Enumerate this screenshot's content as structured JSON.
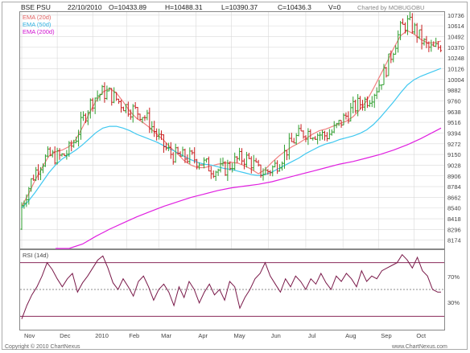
{
  "header": {
    "symbol": "BSE PSU",
    "date": "22/10/2010",
    "open": "O=10433.89",
    "high": "H=10488.31",
    "low": "L=10390.37",
    "close": "C=10436.3",
    "volume": "V=0",
    "credit": "Charted by MOBUGOBU"
  },
  "footer": {
    "copyright": "Copyright © 2010 ChartNexus",
    "brand": "www.ChartNexus.com"
  },
  "colors": {
    "bg": "#ffffff",
    "grid": "#d9d9d9",
    "frame": "#888888",
    "up": "#2e9e2e",
    "down": "#c81e1e",
    "ema20": "#f08080",
    "ema50": "#40c8f0",
    "ema200": "#e020e0",
    "rsi": "#7a1a4a",
    "rsiBand": "#8a2a5a"
  },
  "chart_data": [
    {
      "type": "line",
      "subtype": "ohlc-bars",
      "title": "BSE PSU",
      "x_ticks": [
        "Nov",
        "Dec",
        "2010",
        "Feb",
        "Mar",
        "Apr",
        "May",
        "Jun",
        "Jul",
        "Aug",
        "Sep",
        "Oct"
      ],
      "y_ticks": [
        8174,
        8296,
        8418,
        8540,
        8662,
        8784,
        8906,
        9028,
        9150,
        9272,
        9394,
        9516,
        9638,
        9760,
        9882,
        10004,
        10126,
        10248,
        10370,
        10492,
        10614,
        10736
      ],
      "ylim": [
        8080,
        10780
      ],
      "grid": true,
      "legend": "top-left",
      "series": [
        {
          "name": "EMA (20d)",
          "role": "ema20",
          "x": [
            0,
            4,
            8,
            12,
            16,
            20,
            24,
            28,
            32,
            36,
            40,
            44,
            48,
            52,
            56,
            60,
            64,
            68,
            72,
            76,
            80,
            84,
            88,
            92,
            96,
            100,
            104,
            108,
            112,
            116,
            120,
            124,
            128,
            132,
            136,
            140,
            144,
            148,
            152,
            156,
            160,
            164,
            168,
            172,
            176,
            180,
            184,
            188,
            192,
            196,
            200,
            204,
            208,
            212,
            216,
            220,
            224,
            228,
            232,
            236,
            240,
            244,
            248
          ],
          "values": [
            8560,
            8700,
            8860,
            9000,
            9130,
            9180,
            9200,
            9240,
            9320,
            9460,
            9620,
            9760,
            9860,
            9900,
            9850,
            9750,
            9640,
            9560,
            9510,
            9450,
            9380,
            9310,
            9230,
            9160,
            9080,
            9030,
            9000,
            9000,
            9020,
            9040,
            9050,
            9060,
            9050,
            9020,
            8980,
            8930,
            8980,
            9060,
            9130,
            9190,
            9240,
            9280,
            9330,
            9380,
            9420,
            9440,
            9470,
            9500,
            9530,
            9580,
            9660,
            9760,
            9900,
            10050,
            10200,
            10360,
            10500,
            10560,
            10520,
            10460,
            10420,
            10420,
            10440
          ]
        },
        {
          "name": "EMA (50d)",
          "role": "ema50",
          "x": [
            0,
            4,
            8,
            12,
            16,
            20,
            24,
            28,
            32,
            36,
            40,
            44,
            48,
            52,
            56,
            60,
            64,
            68,
            72,
            76,
            80,
            84,
            88,
            92,
            96,
            100,
            104,
            108,
            112,
            116,
            120,
            124,
            128,
            132,
            136,
            140,
            144,
            148,
            152,
            156,
            160,
            164,
            168,
            172,
            176,
            180,
            184,
            188,
            192,
            196,
            200,
            204,
            208,
            212,
            216,
            220,
            224,
            228,
            232,
            236,
            240,
            244,
            248
          ],
          "values": [
            8540,
            8620,
            8720,
            8830,
            8940,
            9030,
            9100,
            9150,
            9200,
            9260,
            9330,
            9400,
            9450,
            9470,
            9470,
            9450,
            9420,
            9380,
            9350,
            9320,
            9290,
            9250,
            9210,
            9170,
            9130,
            9090,
            9060,
            9040,
            9030,
            9010,
            8990,
            8980,
            8960,
            8940,
            8920,
            8910,
            8920,
            8950,
            8990,
            9030,
            9070,
            9110,
            9160,
            9200,
            9240,
            9270,
            9290,
            9320,
            9340,
            9360,
            9390,
            9430,
            9490,
            9570,
            9660,
            9750,
            9850,
            9940,
            10000,
            10040,
            10070,
            10100,
            10130
          ]
        },
        {
          "name": "EMA (200d)",
          "role": "ema200",
          "x": [
            20,
            28,
            36,
            44,
            52,
            60,
            68,
            76,
            84,
            92,
            100,
            108,
            116,
            124,
            132,
            140,
            148,
            156,
            164,
            172,
            180,
            188,
            196,
            204,
            212,
            220,
            228,
            236,
            244,
            248
          ],
          "values": [
            7980,
            8050,
            8130,
            8220,
            8300,
            8370,
            8440,
            8500,
            8560,
            8610,
            8660,
            8700,
            8740,
            8770,
            8790,
            8810,
            8840,
            8880,
            8920,
            8960,
            9000,
            9040,
            9070,
            9110,
            9150,
            9200,
            9260,
            9330,
            9410,
            9450
          ]
        }
      ]
    },
    {
      "type": "line",
      "title": "RSI (14d)",
      "y_ticks": [
        "70%",
        "30%"
      ],
      "ylim": [
        20,
        80
      ],
      "bands": [
        70,
        50,
        30
      ],
      "series": [
        {
          "name": "RSI (14d)",
          "x": [
            0,
            3,
            6,
            9,
            12,
            15,
            18,
            21,
            24,
            27,
            30,
            33,
            36,
            39,
            42,
            45,
            48,
            51,
            54,
            57,
            60,
            63,
            66,
            69,
            72,
            75,
            78,
            81,
            84,
            87,
            90,
            93,
            96,
            99,
            102,
            105,
            108,
            111,
            114,
            117,
            120,
            123,
            126,
            129,
            132,
            135,
            138,
            141,
            144,
            147,
            150,
            153,
            156,
            159,
            162,
            165,
            168,
            171,
            174,
            177,
            180,
            183,
            186,
            189,
            192,
            195,
            198,
            201,
            204,
            207,
            210,
            213,
            216,
            219,
            222,
            225,
            228,
            231,
            234,
            237,
            240,
            243,
            246,
            248
          ],
          "values": [
            28,
            38,
            46,
            52,
            60,
            70,
            65,
            58,
            52,
            58,
            62,
            48,
            55,
            60,
            66,
            72,
            75,
            66,
            55,
            50,
            58,
            52,
            45,
            56,
            60,
            52,
            42,
            50,
            54,
            48,
            38,
            52,
            44,
            56,
            50,
            40,
            48,
            54,
            46,
            50,
            42,
            56,
            52,
            36,
            44,
            50,
            58,
            62,
            70,
            60,
            54,
            48,
            58,
            52,
            60,
            56,
            50,
            58,
            54,
            62,
            55,
            50,
            60,
            56,
            62,
            58,
            52,
            64,
            56,
            60,
            58,
            64,
            66,
            68,
            70,
            76,
            72,
            66,
            74,
            64,
            60,
            50,
            48,
            48
          ]
        }
      ]
    }
  ]
}
